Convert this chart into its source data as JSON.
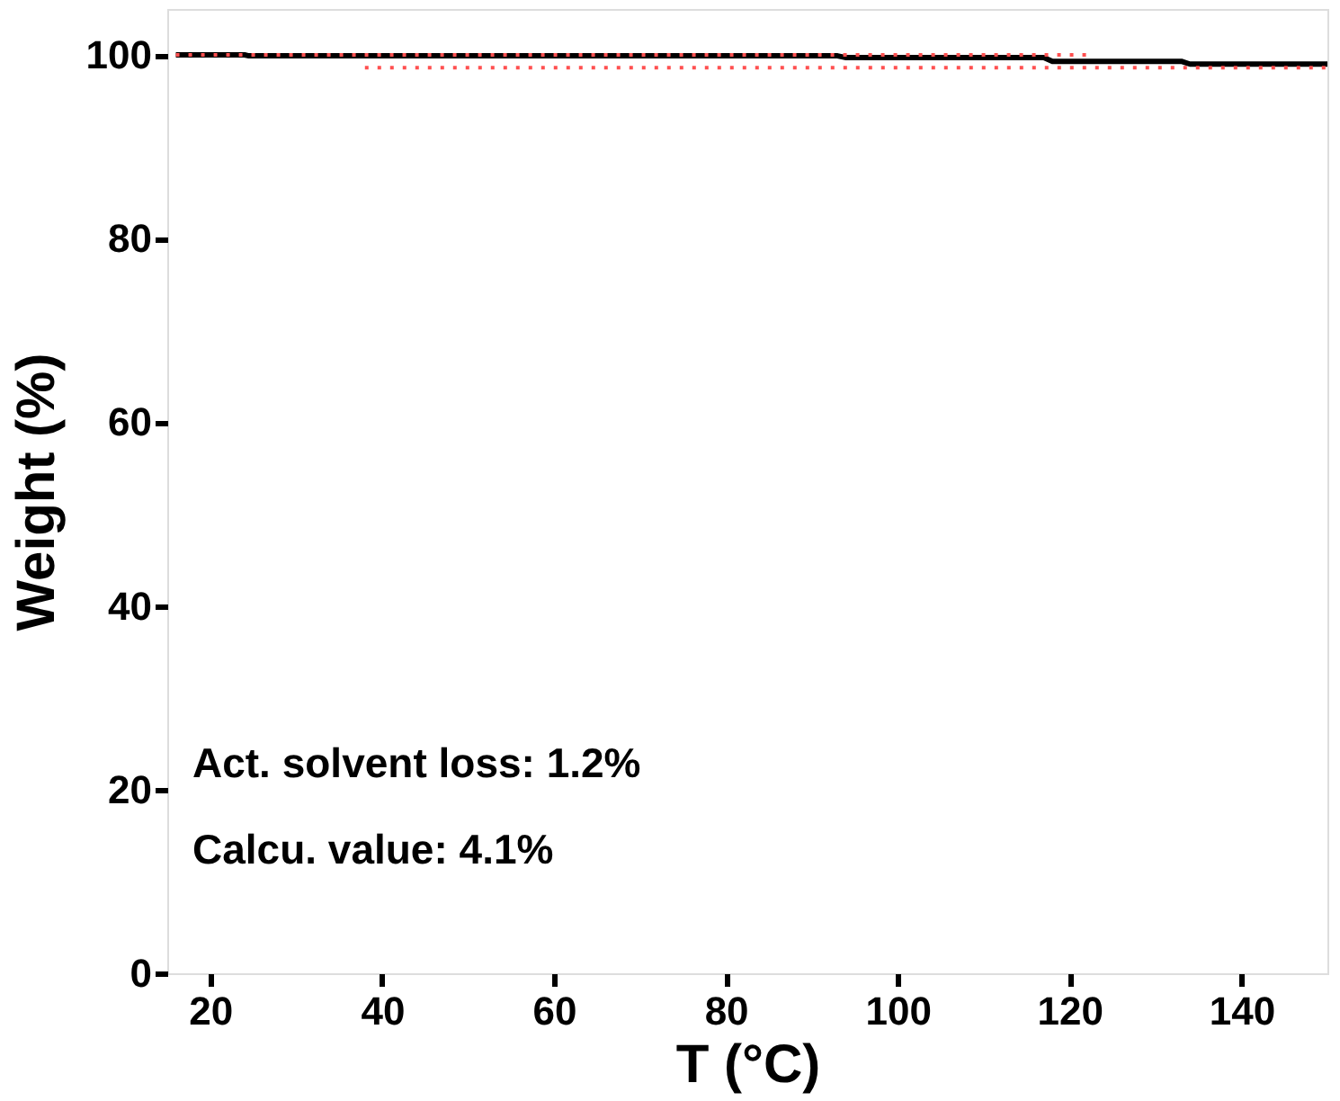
{
  "chart_data": {
    "type": "line",
    "xlabel": "T (°C)",
    "ylabel": "Weight (%)",
    "xlim": [
      15,
      150
    ],
    "xticks": [
      20,
      40,
      60,
      80,
      100,
      120,
      140
    ],
    "ylim": [
      0,
      105
    ],
    "yticks": [
      0,
      20,
      40,
      60,
      80,
      100
    ],
    "grid": false,
    "series": [
      {
        "color": "#000000",
        "line_style": "solid",
        "x": [
          16,
          24,
          24.5,
          93,
          94,
          117,
          118,
          133,
          134,
          150
        ],
        "values": [
          100,
          100,
          99.9,
          99.9,
          99.7,
          99.7,
          99.3,
          99.3,
          99.0,
          99.0
        ]
      },
      {
        "color": "#ff5050",
        "line_style": "dotted",
        "x": [
          16,
          122.5
        ],
        "values": [
          100,
          100
        ]
      },
      {
        "color": "#ff5050",
        "line_style": "dotted",
        "x": [
          38,
          150
        ],
        "values": [
          98.6,
          98.6
        ]
      }
    ],
    "annotations": [
      "Act. solvent loss: 1.2%",
      "Calcu. value: 4.1%"
    ]
  }
}
